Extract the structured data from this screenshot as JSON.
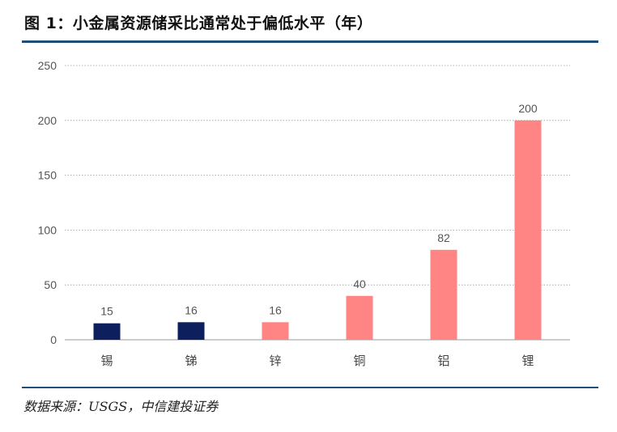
{
  "figure": {
    "title": "图 1：小金属资源储采比通常处于偏低水平（年）",
    "source": "数据来源：USGS，中信建投证券"
  },
  "colors": {
    "dark_bar": "#0d1f5c",
    "light_bar": "#ff8585",
    "rule": "#1f4e79",
    "grid": "#9a9a9a"
  },
  "chart_data": {
    "type": "bar",
    "title": "",
    "xlabel": "",
    "ylabel": "",
    "categories": [
      "锡",
      "锑",
      "锌",
      "铜",
      "铝",
      "锂"
    ],
    "values": [
      15,
      16,
      16,
      40,
      82,
      200
    ],
    "data_labels": [
      "15",
      "16",
      "16",
      "40",
      "82",
      "200"
    ],
    "bar_colors": [
      "#0d1f5c",
      "#0d1f5c",
      "#ff8585",
      "#ff8585",
      "#ff8585",
      "#ff8585"
    ],
    "ylim": [
      0,
      250
    ],
    "yticks": [
      0,
      50,
      100,
      150,
      200,
      250
    ],
    "ytick_labels": [
      "0",
      "50",
      "100",
      "150",
      "200",
      "250"
    ],
    "grid": "dotted horizontal",
    "legend": "none"
  }
}
